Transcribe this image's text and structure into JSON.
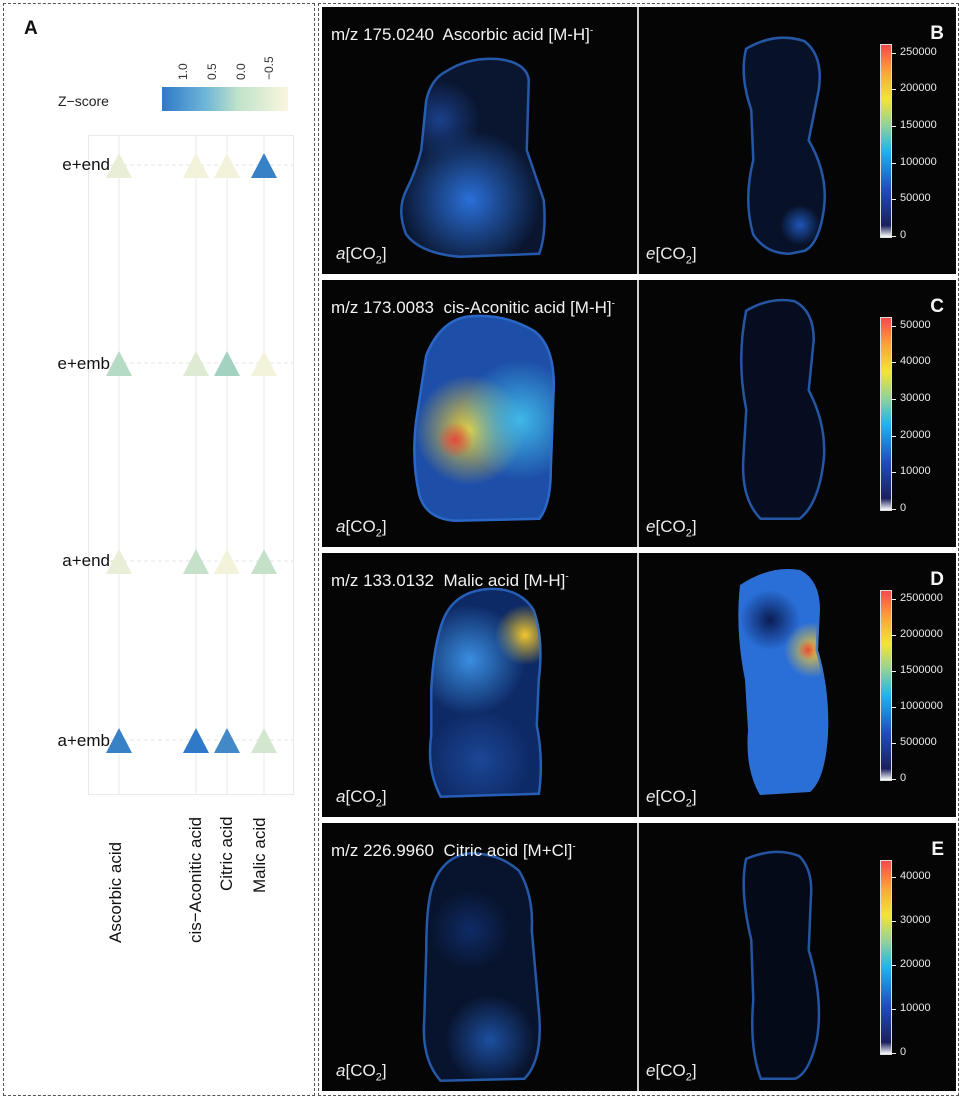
{
  "panel_a": {
    "letter": "A",
    "legend_title": "Z−score",
    "legend_ticks": [
      "1.0",
      "0.5",
      "0.0",
      "−0.5"
    ],
    "rows": [
      "e+end",
      "e+emb",
      "a+end",
      "a+emb"
    ],
    "columns": [
      "Ascorbic acid",
      "cis−Aconitic acid",
      "Citric acid",
      "Malic acid"
    ],
    "chart_data": {
      "type": "heatmap",
      "title": "",
      "xlabel": "",
      "ylabel": "",
      "legend_title": "Z−score",
      "colorbar_ticks": [
        1.0,
        0.5,
        0.0,
        -0.5
      ],
      "categories_x": [
        "Ascorbic acid",
        "cis−Aconitic acid",
        "Citric acid",
        "Malic acid"
      ],
      "categories_y": [
        "e+end",
        "e+emb",
        "a+end",
        "a+emb"
      ],
      "cells": [
        {
          "row": "e+end",
          "values": [
            -0.6,
            -0.75,
            -0.75,
            1.4
          ]
        },
        {
          "row": "e+emb",
          "values": [
            0.1,
            -0.45,
            0.35,
            -0.75
          ]
        },
        {
          "row": "a+end",
          "values": [
            -0.6,
            -0.1,
            -0.75,
            -0.1
          ]
        },
        {
          "row": "a+emb",
          "values": [
            1.4,
            1.5,
            1.3,
            -0.3
          ]
        }
      ],
      "colors": {
        "high": "#2f79c8",
        "mid": "#a8d6c0",
        "low": "#f7f3dc"
      }
    }
  },
  "panels": [
    {
      "letter": "B",
      "mz": "m/z 175.0240",
      "compound": "Ascorbic acid",
      "adduct": "[M-H]",
      "adduct_sup": "-",
      "left_label": "a",
      "right_label": "e",
      "group_sub": "2",
      "group_prefix": "[CO",
      "group_suffix": "]",
      "colorbar_ticks": [
        "250000",
        "200000",
        "150000",
        "100000",
        "50000",
        "0"
      ]
    },
    {
      "letter": "C",
      "mz": "m/z 173.0083",
      "compound": "cis-Aconitic acid",
      "adduct": "[M-H]",
      "adduct_sup": "-",
      "left_label": "a",
      "right_label": "e",
      "group_sub": "2",
      "group_prefix": "[CO",
      "group_suffix": "]",
      "colorbar_ticks": [
        "50000",
        "40000",
        "30000",
        "20000",
        "10000",
        "0"
      ]
    },
    {
      "letter": "D",
      "mz": "m/z 133.0132",
      "compound": "Malic acid",
      "adduct": "[M-H]",
      "adduct_sup": "-",
      "left_label": "a",
      "right_label": "e",
      "group_sub": "2",
      "group_prefix": "[CO",
      "group_suffix": "]",
      "colorbar_ticks": [
        "2500000",
        "2000000",
        "1500000",
        "1000000",
        "500000",
        "0"
      ]
    },
    {
      "letter": "E",
      "mz": "m/z 226.9960",
      "compound": "Citric acid",
      "adduct": "[M+Cl]",
      "adduct_sup": "-",
      "left_label": "a",
      "right_label": "e",
      "group_sub": "2",
      "group_prefix": "[CO",
      "group_suffix": "]",
      "colorbar_ticks": [
        "40000",
        "30000",
        "20000",
        "10000",
        "0"
      ]
    }
  ]
}
